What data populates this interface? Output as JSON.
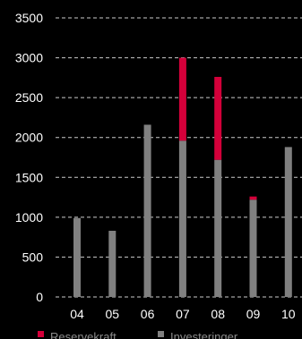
{
  "chart_data": {
    "type": "bar",
    "stacked": true,
    "categories": [
      "04",
      "05",
      "06",
      "07",
      "08",
      "09",
      "10"
    ],
    "series": [
      {
        "name": "Investeringer",
        "color": "#808080",
        "values": [
          990,
          830,
          2160,
          1960,
          1720,
          1220,
          1880
        ]
      },
      {
        "name": "Reservekraft",
        "color": "#d4003a",
        "values": [
          0,
          0,
          0,
          1040,
          1040,
          40,
          0
        ]
      }
    ],
    "yticks": [
      "0",
      "500",
      "1000",
      "1500",
      "2000",
      "2500",
      "3000",
      "3500"
    ],
    "ylim": [
      0,
      3500
    ],
    "grid": true,
    "grid_style": "dashed",
    "legend_position": "bottom-left",
    "legend": [
      "Reservekraft",
      "Investeringer"
    ],
    "background_color": "#000000",
    "text_color": "#ffffff",
    "grid_color": "#cccccc"
  }
}
